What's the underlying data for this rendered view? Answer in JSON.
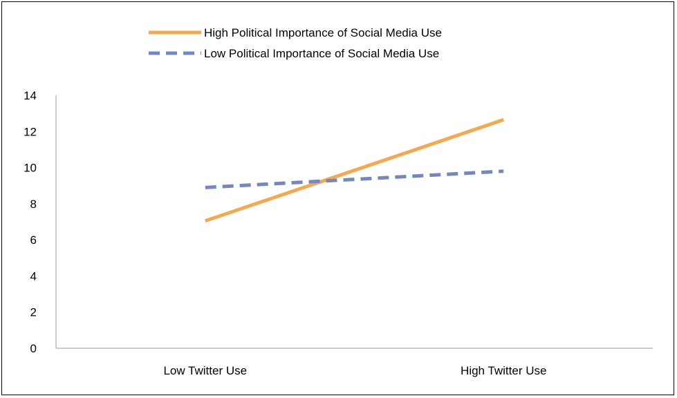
{
  "chart_data": {
    "type": "line",
    "title": "",
    "xlabel": "",
    "ylabel": "",
    "categories": [
      "Low Twitter Use",
      "High Twitter Use"
    ],
    "ylim": [
      0,
      14
    ],
    "yticks": [
      "0",
      "2",
      "4",
      "6",
      "8",
      "10",
      "12",
      "14"
    ],
    "grid": false,
    "legend_position": "top",
    "series": [
      {
        "name": "High Political Importance of Social Media Use",
        "values": [
          7.05,
          12.65
        ],
        "color": "#F4A94E",
        "line_style": "solid"
      },
      {
        "name": "Low Political Importance of Social Media Use",
        "values": [
          8.9,
          9.8
        ],
        "color": "#7388C1",
        "line_style": "dashed"
      }
    ]
  }
}
